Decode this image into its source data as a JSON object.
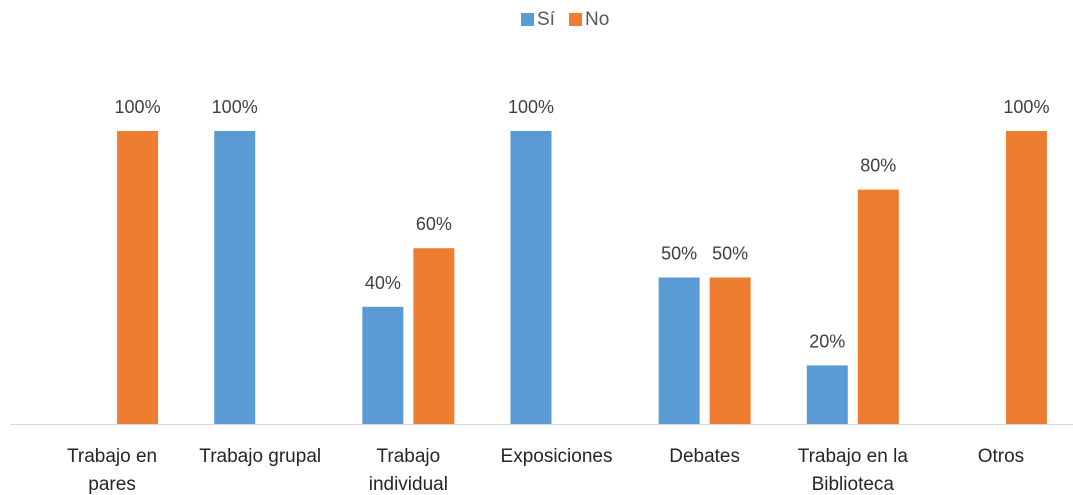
{
  "chart_data": {
    "type": "bar",
    "title": "",
    "xlabel": "",
    "ylabel": "",
    "ylim": [
      0,
      100
    ],
    "grid": false,
    "legend_position": "top-center",
    "categories": [
      [
        "Trabajo en",
        "pares"
      ],
      [
        "Trabajo grupal"
      ],
      [
        "Trabajo",
        "individual"
      ],
      [
        "Exposiciones"
      ],
      [
        "Debates"
      ],
      [
        "Trabajo en la",
        "Biblioteca"
      ],
      [
        "Otros"
      ]
    ],
    "series": [
      {
        "name": "Sí",
        "color": "#5B9BD5",
        "values": [
          null,
          100,
          40,
          100,
          50,
          20,
          null
        ],
        "labels": [
          null,
          "100%",
          "40%",
          "100%",
          "50%",
          "20%",
          null
        ]
      },
      {
        "name": "No",
        "color": "#ED7D31",
        "values": [
          100,
          null,
          60,
          null,
          50,
          80,
          100
        ],
        "labels": [
          "100%",
          null,
          "60%",
          null,
          "50%",
          "80%",
          "100%"
        ]
      }
    ]
  }
}
